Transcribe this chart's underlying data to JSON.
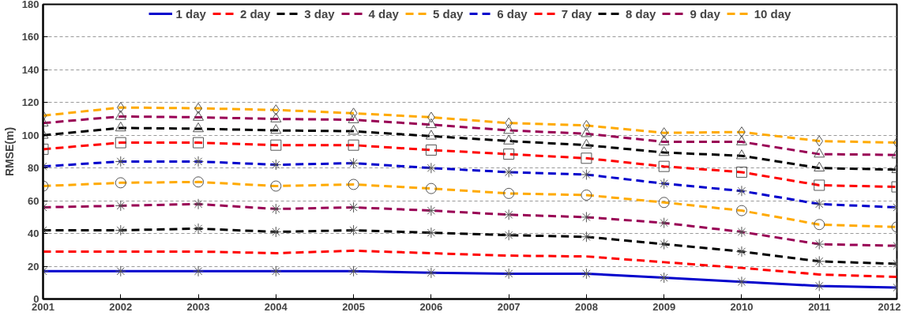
{
  "chart_data": {
    "type": "line",
    "ylabel": "RMSE(m)",
    "x": [
      2001,
      2002,
      2003,
      2004,
      2005,
      2006,
      2007,
      2008,
      2009,
      2010,
      2011,
      2012
    ],
    "xlim": [
      2001,
      2012
    ],
    "xticks": [
      2001,
      2002,
      2003,
      2004,
      2005,
      2006,
      2007,
      2008,
      2009,
      2010,
      2011,
      2012
    ],
    "ylim": [
      0,
      180
    ],
    "yticks": [
      0,
      20,
      40,
      60,
      80,
      100,
      120,
      140,
      160,
      180
    ],
    "grid": "y",
    "legend": "top",
    "series": [
      {
        "name": "1 day",
        "color": "#0000cc",
        "line_style": "solid",
        "marker": "cross",
        "values": [
          17,
          17,
          17,
          17,
          17,
          16,
          15.5,
          15.5,
          13,
          10.5,
          8,
          7
        ]
      },
      {
        "name": "2 day",
        "color": "#ff0000",
        "line_style": "dashed",
        "marker": "none",
        "values": [
          29,
          29,
          29,
          28,
          29.5,
          28,
          26.5,
          26,
          22.5,
          19,
          15,
          13.5
        ]
      },
      {
        "name": "3 day",
        "color": "#000000",
        "line_style": "dashed",
        "marker": "cross",
        "values": [
          42,
          42,
          43,
          41,
          42,
          40.5,
          39,
          38,
          33.5,
          29,
          23,
          21.5
        ]
      },
      {
        "name": "4 day",
        "color": "#990055",
        "line_style": "dashed",
        "marker": "cross",
        "values": [
          56,
          57,
          58,
          55,
          56,
          54,
          51.5,
          50,
          46.5,
          41,
          33.5,
          32.5
        ]
      },
      {
        "name": "5 day",
        "color": "#ffaa00",
        "line_style": "dashed",
        "marker": "circle",
        "values": [
          69,
          71,
          71.5,
          69,
          70,
          67.5,
          64.5,
          63.5,
          59,
          54,
          45.5,
          44
        ]
      },
      {
        "name": "6 day",
        "color": "#0000cc",
        "line_style": "dashed",
        "marker": "cross",
        "values": [
          81,
          84,
          84,
          82,
          83,
          80,
          77.5,
          76,
          70.5,
          66,
          58,
          56
        ]
      },
      {
        "name": "7 day",
        "color": "#ff0000",
        "line_style": "dashed",
        "marker": "square",
        "values": [
          91.5,
          95.5,
          95.5,
          94,
          94,
          91,
          88.5,
          86,
          81,
          77.5,
          69.5,
          68.5
        ]
      },
      {
        "name": "8 day",
        "color": "#000000",
        "line_style": "dashed",
        "marker": "triangle",
        "values": [
          100,
          104.5,
          104,
          103,
          102.5,
          99.5,
          96.5,
          94,
          89.5,
          87.5,
          80,
          79
        ]
      },
      {
        "name": "9 day",
        "color": "#990055",
        "line_style": "dashed",
        "marker": "triangle",
        "values": [
          107.5,
          111.5,
          111,
          110,
          109.5,
          106.5,
          103,
          101,
          96,
          96,
          88.5,
          88
        ]
      },
      {
        "name": "10 day",
        "color": "#ffaa00",
        "line_style": "dashed",
        "marker": "diamond",
        "values": [
          112,
          117,
          116.5,
          115.5,
          113.5,
          111,
          107.5,
          106,
          101.5,
          102,
          96.5,
          95.5
        ]
      }
    ]
  }
}
